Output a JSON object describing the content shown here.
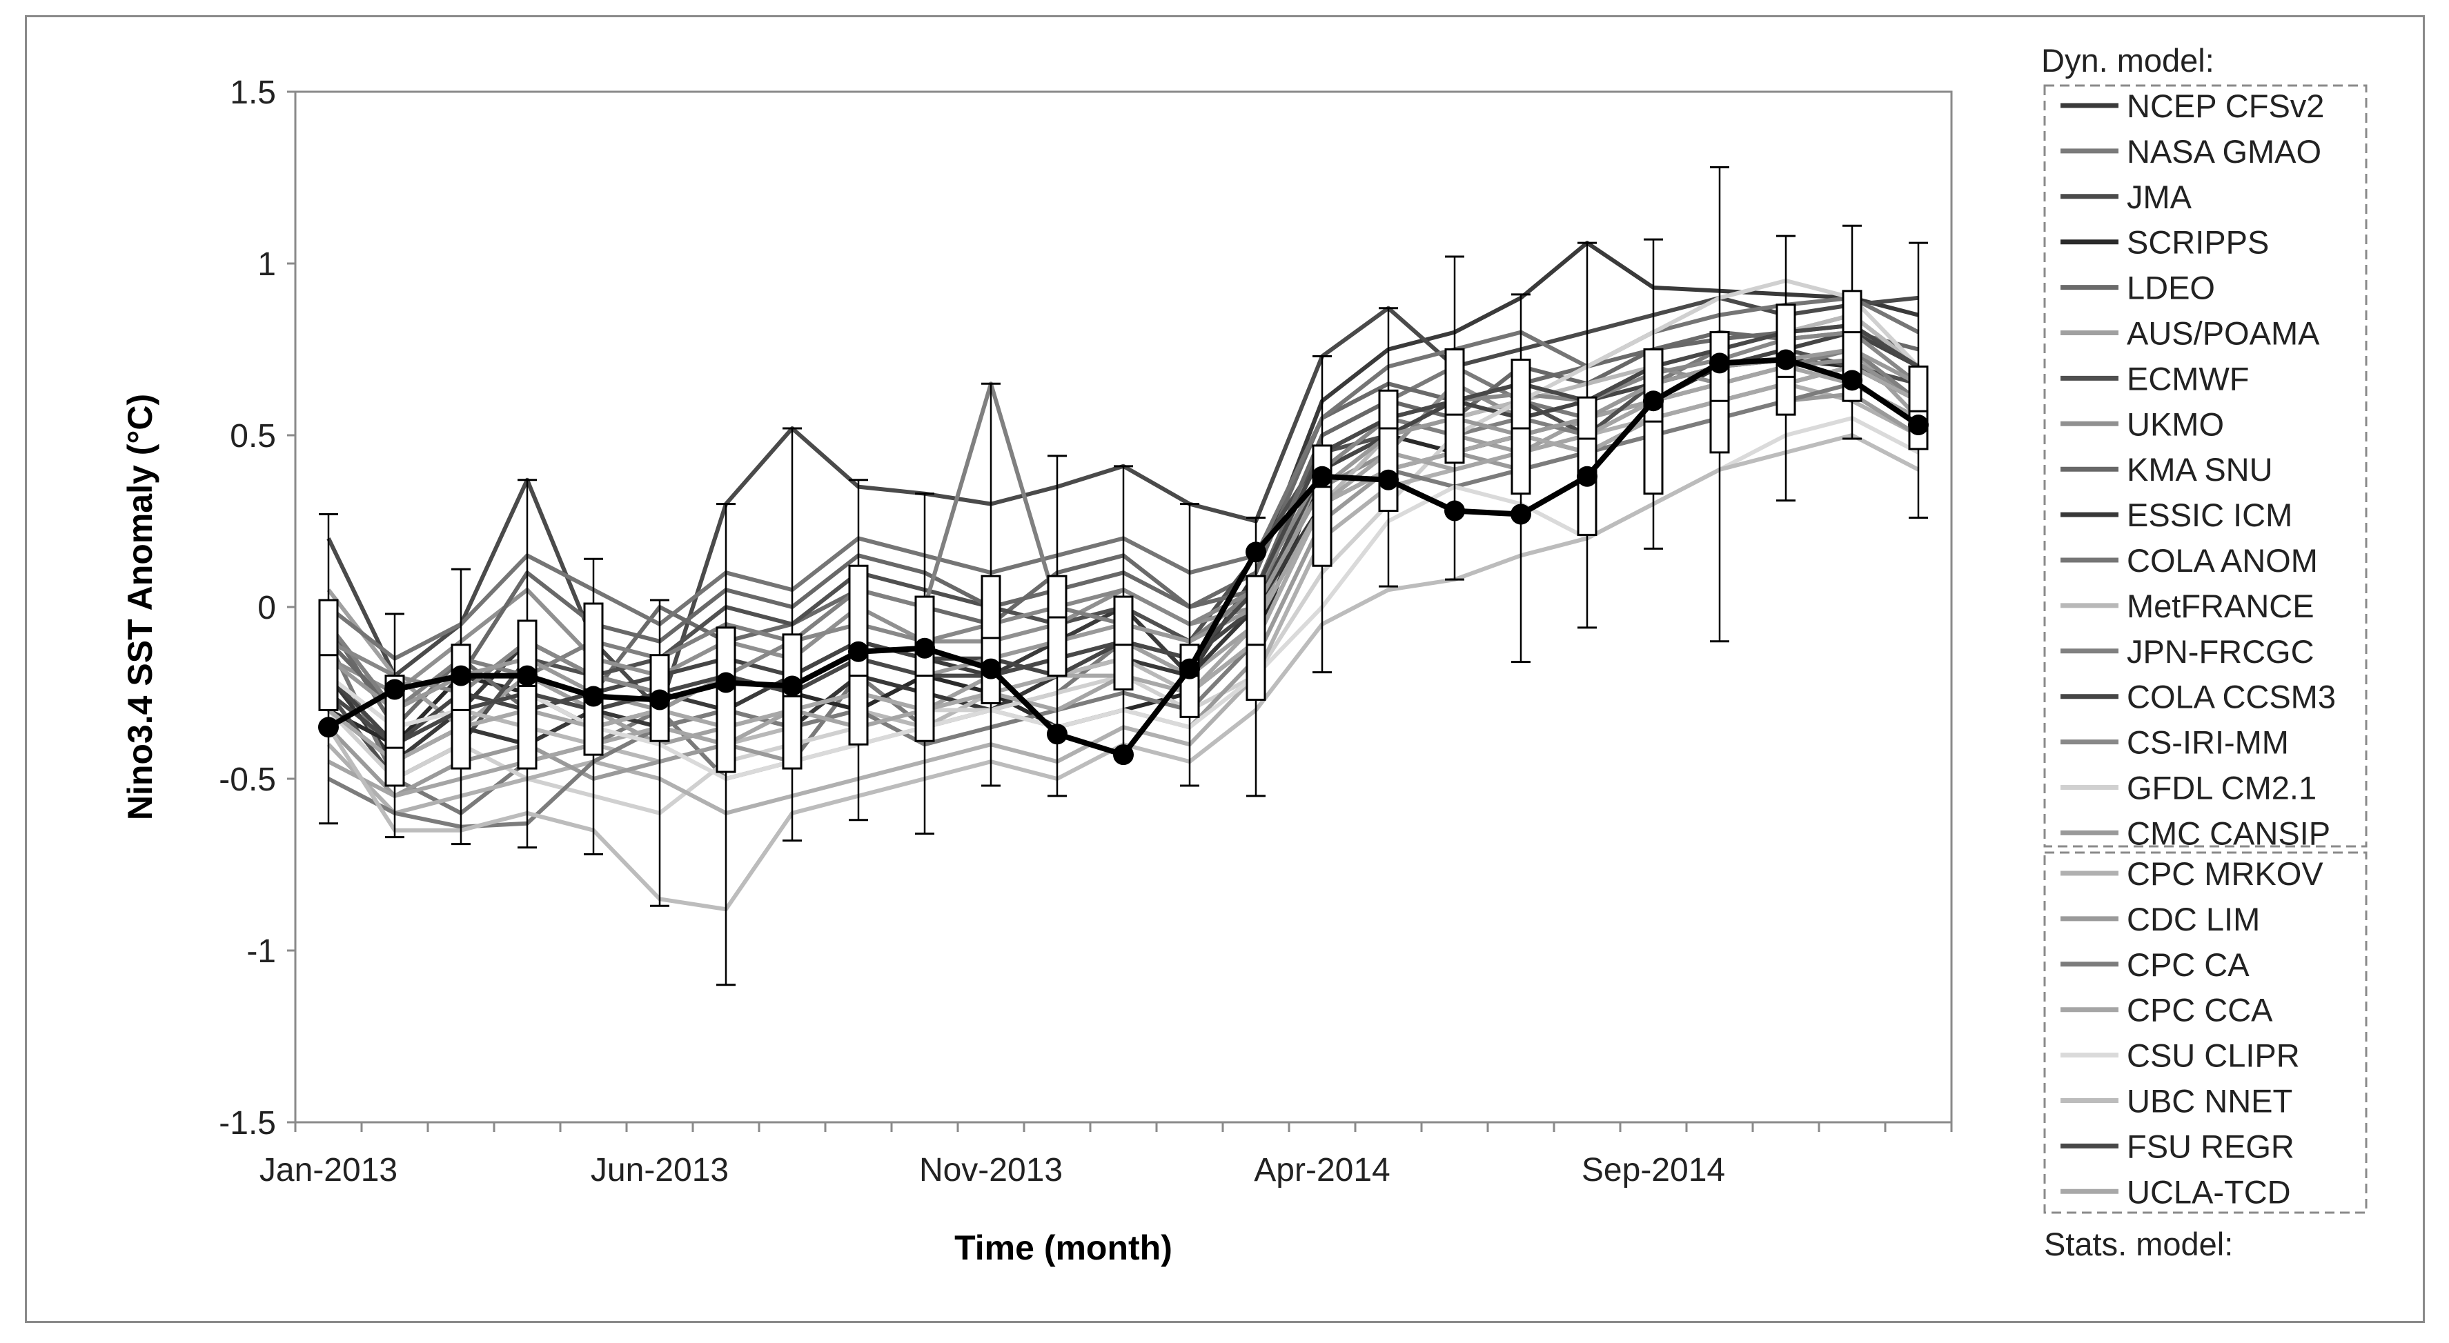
{
  "chart_data": {
    "type": "line",
    "title": "",
    "xlabel": "Time (month)",
    "ylabel": "Nino3.4 SST Anomaly (°C)",
    "ylim": [
      -1.5,
      1.5
    ],
    "yticks": [
      "1.5",
      "1",
      "0.5",
      "0",
      "-0.5",
      "-1",
      "-1.5"
    ],
    "months": [
      "Jan-2013",
      "Feb-2013",
      "Mar-2013",
      "Apr-2013",
      "May-2013",
      "Jun-2013",
      "Jul-2013",
      "Aug-2013",
      "Sep-2013",
      "Oct-2013",
      "Nov-2013",
      "Dec-2013",
      "Jan-2014",
      "Feb-2014",
      "Mar-2014",
      "Apr-2014",
      "May-2014",
      "Jun-2014",
      "Jul-2014",
      "Aug-2014",
      "Sep-2014",
      "Oct-2014",
      "Nov-2014",
      "Dec-2014",
      "Jan-2015"
    ],
    "xtick_labels": [
      {
        "label": "Jan-2013",
        "month_index": 0
      },
      {
        "label": "Jun-2013",
        "month_index": 5
      },
      {
        "label": "Nov-2013",
        "month_index": 10
      },
      {
        "label": "Apr-2014",
        "month_index": 15
      },
      {
        "label": "Sep-2014",
        "month_index": 20
      }
    ],
    "observed": [
      -0.35,
      -0.24,
      -0.2,
      -0.2,
      -0.26,
      -0.27,
      -0.22,
      -0.23,
      -0.13,
      -0.12,
      -0.18,
      -0.37,
      -0.43,
      -0.18,
      0.16,
      0.38,
      0.37,
      0.28,
      0.27,
      0.38,
      0.6,
      0.71,
      0.72,
      0.66,
      0.53
    ],
    "boxplots": [
      {
        "min": -0.63,
        "q1": -0.3,
        "median": -0.14,
        "q3": 0.02,
        "max": 0.27
      },
      {
        "min": -0.67,
        "q1": -0.52,
        "median": -0.41,
        "q3": -0.2,
        "max": -0.02
      },
      {
        "min": -0.69,
        "q1": -0.47,
        "median": -0.3,
        "q3": -0.11,
        "max": 0.11
      },
      {
        "min": -0.7,
        "q1": -0.47,
        "median": -0.23,
        "q3": -0.04,
        "max": 0.37
      },
      {
        "min": -0.72,
        "q1": -0.43,
        "median": -0.24,
        "q3": 0.01,
        "max": 0.14
      },
      {
        "min": -0.87,
        "q1": -0.39,
        "median": -0.27,
        "q3": -0.14,
        "max": 0.02
      },
      {
        "min": -1.1,
        "q1": -0.48,
        "median": -0.22,
        "q3": -0.06,
        "max": 0.3
      },
      {
        "min": -0.68,
        "q1": -0.47,
        "median": -0.26,
        "q3": -0.08,
        "max": 0.52
      },
      {
        "min": -0.62,
        "q1": -0.4,
        "median": -0.2,
        "q3": 0.12,
        "max": 0.37
      },
      {
        "min": -0.66,
        "q1": -0.39,
        "median": -0.2,
        "q3": 0.03,
        "max": 0.33
      },
      {
        "min": -0.52,
        "q1": -0.28,
        "median": -0.09,
        "q3": 0.09,
        "max": 0.65
      },
      {
        "min": -0.55,
        "q1": -0.2,
        "median": -0.03,
        "q3": 0.09,
        "max": 0.44
      },
      {
        "min": -0.44,
        "q1": -0.24,
        "median": -0.11,
        "q3": 0.03,
        "max": 0.41
      },
      {
        "min": -0.52,
        "q1": -0.32,
        "median": -0.2,
        "q3": -0.11,
        "max": 0.3
      },
      {
        "min": -0.55,
        "q1": -0.27,
        "median": -0.11,
        "q3": 0.09,
        "max": 0.26
      },
      {
        "min": -0.19,
        "q1": 0.12,
        "median": 0.35,
        "q3": 0.47,
        "max": 0.73
      },
      {
        "min": 0.06,
        "q1": 0.28,
        "median": 0.52,
        "q3": 0.63,
        "max": 0.87
      },
      {
        "min": 0.08,
        "q1": 0.42,
        "median": 0.56,
        "q3": 0.75,
        "max": 1.02
      },
      {
        "min": -0.16,
        "q1": 0.33,
        "median": 0.52,
        "q3": 0.72,
        "max": 0.91
      },
      {
        "min": -0.06,
        "q1": 0.21,
        "median": 0.49,
        "q3": 0.61,
        "max": 1.06
      },
      {
        "min": 0.17,
        "q1": 0.33,
        "median": 0.54,
        "q3": 0.75,
        "max": 1.07
      },
      {
        "min": -0.1,
        "q1": 0.45,
        "median": 0.6,
        "q3": 0.8,
        "max": 1.28
      },
      {
        "min": 0.31,
        "q1": 0.56,
        "median": 0.67,
        "q3": 0.88,
        "max": 1.08
      },
      {
        "min": 0.49,
        "q1": 0.6,
        "median": 0.8,
        "q3": 0.92,
        "max": 1.11
      },
      {
        "min": 0.26,
        "q1": 0.46,
        "median": 0.57,
        "q3": 0.7,
        "max": 1.06
      }
    ],
    "dynamical_models": [
      {
        "name": "NCEP CFSv2",
        "color": "#3a3a3a",
        "values": [
          -0.2,
          -0.45,
          -0.3,
          -0.1,
          -0.2,
          -0.25,
          -0.3,
          -0.2,
          -0.1,
          -0.15,
          -0.2,
          -0.1,
          0.0,
          -0.2,
          0.1,
          0.6,
          0.75,
          0.8,
          0.9,
          1.06,
          0.93,
          0.92,
          0.91,
          0.9,
          0.85
        ]
      },
      {
        "name": "NASA GMAO",
        "color": "#7a7a7a",
        "values": [
          -0.1,
          -0.5,
          -0.6,
          -0.45,
          -0.4,
          -0.3,
          -0.5,
          -0.45,
          -0.2,
          -0.35,
          -0.3,
          -0.25,
          -0.1,
          -0.2,
          0.0,
          0.5,
          0.6,
          0.7,
          0.6,
          0.55,
          0.65,
          0.75,
          0.8,
          0.85,
          0.7
        ]
      },
      {
        "name": "JMA",
        "color": "#4a4a4a",
        "values": [
          0.2,
          -0.2,
          -0.05,
          0.37,
          -0.1,
          -0.3,
          0.3,
          0.52,
          0.35,
          0.33,
          0.3,
          0.35,
          0.41,
          0.3,
          0.25,
          0.73,
          0.87,
          0.7,
          0.75,
          0.8,
          0.85,
          0.9,
          0.85,
          0.88,
          0.9
        ]
      },
      {
        "name": "SCRIPPS",
        "color": "#2a2a2a",
        "values": [
          -0.3,
          -0.4,
          -0.2,
          -0.25,
          -0.35,
          -0.3,
          -0.2,
          -0.25,
          -0.3,
          -0.2,
          -0.25,
          -0.35,
          -0.3,
          -0.25,
          -0.1,
          0.4,
          0.5,
          0.45,
          0.5,
          0.55,
          0.6,
          0.7,
          0.72,
          0.7,
          0.6
        ]
      },
      {
        "name": "LDEO",
        "color": "#6a6a6a",
        "values": [
          -0.05,
          -0.35,
          -0.15,
          -0.3,
          -0.25,
          0.0,
          -0.1,
          -0.05,
          0.05,
          0.0,
          -0.05,
          0.1,
          0.15,
          0.0,
          0.1,
          0.55,
          0.65,
          0.6,
          0.65,
          0.7,
          0.75,
          0.8,
          0.78,
          0.8,
          0.75
        ]
      },
      {
        "name": "AUS/POAMA",
        "color": "#a0a0a0",
        "values": [
          0.05,
          -0.2,
          -0.35,
          -0.2,
          -0.3,
          -0.4,
          -0.35,
          -0.3,
          -0.25,
          -0.3,
          -0.2,
          -0.15,
          -0.1,
          -0.2,
          -0.05,
          0.4,
          0.55,
          0.5,
          0.45,
          0.55,
          0.6,
          0.65,
          0.7,
          0.75,
          0.55
        ]
      },
      {
        "name": "ECMWF",
        "color": "#505050",
        "values": [
          -0.25,
          -0.5,
          -0.4,
          -0.15,
          -0.2,
          -0.15,
          0.0,
          -0.05,
          0.1,
          0.05,
          0.0,
          -0.05,
          0.0,
          -0.1,
          0.15,
          0.45,
          0.5,
          0.55,
          0.6,
          0.5,
          0.65,
          0.7,
          0.75,
          0.7,
          0.65
        ]
      },
      {
        "name": "UKMO",
        "color": "#909090",
        "values": [
          -0.15,
          -0.25,
          -0.1,
          0.05,
          -0.15,
          -0.2,
          -0.1,
          -0.15,
          0.0,
          -0.1,
          -0.1,
          -0.05,
          0.05,
          -0.05,
          0.0,
          0.35,
          0.45,
          0.65,
          0.55,
          0.6,
          0.7,
          0.65,
          0.7,
          0.72,
          0.6
        ]
      },
      {
        "name": "KMA SNU",
        "color": "#686868",
        "values": [
          -0.1,
          -0.3,
          -0.2,
          0.1,
          -0.05,
          -0.1,
          0.05,
          0.0,
          0.15,
          0.1,
          0.0,
          0.05,
          0.1,
          0.0,
          0.05,
          0.5,
          0.6,
          0.55,
          0.7,
          0.65,
          0.75,
          0.78,
          0.8,
          0.82,
          0.7
        ]
      },
      {
        "name": "ESSIC ICM",
        "color": "#383838",
        "values": [
          -0.3,
          -0.45,
          -0.35,
          -0.4,
          -0.3,
          -0.35,
          -0.3,
          -0.35,
          -0.2,
          -0.25,
          -0.3,
          -0.2,
          -0.15,
          -0.2,
          0.0,
          0.3,
          0.4,
          0.45,
          0.5,
          0.45,
          0.55,
          0.6,
          0.65,
          0.7,
          0.6
        ]
      },
      {
        "name": "COLA ANOM",
        "color": "#757575",
        "values": [
          0.0,
          -0.15,
          -0.05,
          0.15,
          0.05,
          -0.05,
          0.1,
          0.05,
          0.2,
          0.15,
          0.1,
          0.15,
          0.2,
          0.1,
          0.15,
          0.55,
          0.7,
          0.75,
          0.8,
          0.7,
          0.8,
          0.85,
          0.88,
          0.9,
          0.8
        ]
      },
      {
        "name": "MetFRANCE",
        "color": "#b8b8b8",
        "values": [
          -0.2,
          -0.35,
          -0.3,
          -0.35,
          -0.4,
          -0.45,
          -0.4,
          -0.35,
          -0.3,
          -0.35,
          -0.25,
          -0.2,
          -0.15,
          -0.25,
          -0.1,
          0.3,
          0.5,
          0.55,
          0.6,
          0.65,
          0.7,
          0.75,
          0.8,
          0.85,
          0.7
        ]
      },
      {
        "name": "JPN-FRCGC",
        "color": "#808080",
        "values": [
          -0.05,
          -0.3,
          -0.15,
          -0.2,
          -0.1,
          -0.15,
          -0.05,
          -0.1,
          0.05,
          0.0,
          0.65,
          0.0,
          -0.05,
          -0.1,
          0.05,
          0.45,
          0.55,
          0.5,
          0.55,
          0.5,
          0.6,
          0.65,
          0.7,
          0.75,
          0.6
        ]
      },
      {
        "name": "COLA CCSM3",
        "color": "#454545",
        "values": [
          -0.2,
          -0.4,
          -0.25,
          -0.3,
          -0.25,
          -0.2,
          -0.15,
          -0.2,
          -0.1,
          -0.15,
          -0.15,
          -0.2,
          -0.1,
          -0.15,
          0.0,
          0.4,
          0.5,
          0.6,
          0.55,
          0.6,
          0.65,
          0.7,
          0.75,
          0.8,
          0.7
        ]
      },
      {
        "name": "CS-IRI-MM",
        "color": "#888888",
        "values": [
          -0.1,
          -0.2,
          -0.25,
          -0.1,
          -0.2,
          -0.25,
          -0.2,
          -0.1,
          -0.05,
          -0.1,
          -0.05,
          0.0,
          0.05,
          -0.05,
          0.05,
          0.4,
          0.55,
          0.6,
          0.62,
          0.6,
          0.68,
          0.72,
          0.78,
          0.8,
          0.65
        ]
      },
      {
        "name": "GFDL CM2.1",
        "color": "#d0d0d0",
        "values": [
          -0.3,
          -0.5,
          -0.4,
          -0.5,
          -0.55,
          -0.6,
          -0.45,
          -0.4,
          -0.35,
          -0.3,
          -0.3,
          -0.25,
          -0.2,
          -0.3,
          -0.2,
          0.1,
          0.3,
          0.5,
          0.6,
          0.7,
          0.8,
          0.9,
          0.95,
          0.9,
          0.7
        ]
      },
      {
        "name": "CMC CANSIP",
        "color": "#999999",
        "values": [
          -0.15,
          -0.3,
          -0.2,
          -0.15,
          -0.25,
          -0.3,
          -0.2,
          -0.25,
          -0.15,
          -0.2,
          -0.15,
          -0.1,
          -0.05,
          -0.1,
          0.0,
          0.35,
          0.5,
          0.55,
          0.5,
          0.55,
          0.65,
          0.7,
          0.72,
          0.75,
          0.65
        ]
      }
    ],
    "statistical_models": [
      {
        "name": "CPC MRKOV",
        "color": "#b0b0b0",
        "values": [
          -0.4,
          -0.6,
          -0.55,
          -0.5,
          -0.45,
          -0.5,
          -0.6,
          -0.55,
          -0.5,
          -0.45,
          -0.4,
          -0.45,
          -0.35,
          -0.4,
          -0.2,
          0.2,
          0.35,
          0.4,
          0.45,
          0.5,
          0.55,
          0.6,
          0.65,
          0.6,
          0.5
        ]
      },
      {
        "name": "CDC LIM",
        "color": "#9a9a9a",
        "values": [
          -0.35,
          -0.55,
          -0.45,
          -0.4,
          -0.5,
          -0.45,
          -0.4,
          -0.45,
          -0.4,
          -0.35,
          -0.3,
          -0.35,
          -0.3,
          -0.35,
          -0.15,
          0.25,
          0.4,
          0.45,
          0.4,
          0.45,
          0.5,
          0.55,
          0.6,
          0.62,
          0.5
        ]
      },
      {
        "name": "CPC CA",
        "color": "#7c7c7c",
        "values": [
          -0.5,
          -0.6,
          -0.64,
          -0.63,
          -0.45,
          -0.35,
          -0.3,
          -0.35,
          -0.3,
          -0.4,
          -0.35,
          -0.3,
          -0.25,
          -0.3,
          -0.1,
          0.3,
          0.4,
          0.35,
          0.4,
          0.45,
          0.5,
          0.55,
          0.6,
          0.65,
          0.55
        ]
      },
      {
        "name": "CPC CCA",
        "color": "#a5a5a5",
        "values": [
          -0.45,
          -0.55,
          -0.5,
          -0.45,
          -0.4,
          -0.35,
          -0.4,
          -0.3,
          -0.35,
          -0.3,
          -0.25,
          -0.3,
          -0.2,
          -0.25,
          -0.05,
          0.3,
          0.45,
          0.4,
          0.45,
          0.5,
          0.6,
          0.65,
          0.7,
          0.65,
          0.55
        ]
      },
      {
        "name": "CSU CLIPR",
        "color": "#dadada",
        "values": [
          -0.2,
          -0.35,
          -0.3,
          -0.25,
          -0.35,
          -0.4,
          -0.5,
          -0.45,
          -0.4,
          -0.35,
          -0.3,
          -0.35,
          -0.3,
          -0.35,
          -0.2,
          0.0,
          0.25,
          0.35,
          0.3,
          0.2,
          0.3,
          0.4,
          0.5,
          0.55,
          0.45
        ]
      },
      {
        "name": "UBC NNET",
        "color": "#bcbcbc",
        "values": [
          -0.35,
          -0.65,
          -0.65,
          -0.6,
          -0.65,
          -0.85,
          -0.88,
          -0.6,
          -0.55,
          -0.5,
          -0.45,
          -0.5,
          -0.4,
          -0.45,
          -0.3,
          -0.05,
          0.05,
          0.08,
          0.15,
          0.2,
          0.3,
          0.4,
          0.45,
          0.5,
          0.4
        ]
      },
      {
        "name": "FSU REGR",
        "color": "#484848",
        "values": [
          -0.25,
          -0.4,
          -0.3,
          -0.25,
          -0.3,
          -0.25,
          -0.2,
          -0.25,
          -0.15,
          -0.2,
          -0.2,
          -0.15,
          -0.1,
          -0.15,
          0.05,
          0.45,
          0.55,
          0.6,
          0.65,
          0.6,
          0.7,
          0.75,
          0.8,
          0.82,
          0.7
        ]
      },
      {
        "name": "UCLA-TCD",
        "color": "#a8a8a8",
        "values": [
          -0.3,
          -0.45,
          -0.35,
          -0.3,
          -0.35,
          -0.3,
          -0.35,
          -0.3,
          -0.25,
          -0.3,
          -0.25,
          -0.2,
          -0.2,
          -0.25,
          -0.1,
          0.3,
          0.4,
          0.45,
          0.5,
          0.45,
          0.55,
          0.6,
          0.65,
          0.7,
          0.6
        ]
      }
    ],
    "legend": {
      "dynamical_title": "Dyn. model:",
      "statistical_title": "Stats. model:",
      "position": "right"
    }
  }
}
